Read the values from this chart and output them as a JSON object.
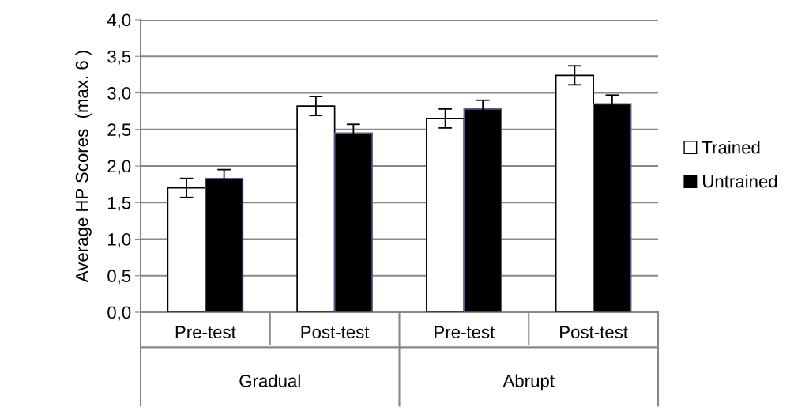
{
  "chart_data": {
    "type": "bar",
    "ylabel": "Average HP Scores  (max. 6 )",
    "categories": [
      "Pre-test",
      "Post-test",
      "Pre-test",
      "Post-test"
    ],
    "annotations": [
      "Gradual",
      "Abrupt"
    ],
    "series": [
      {
        "name": "Trained",
        "color": "#ffffff",
        "values": [
          1.7,
          2.82,
          2.65,
          3.24
        ],
        "errors": [
          0.13,
          0.13,
          0.13,
          0.13
        ]
      },
      {
        "name": "Untrained",
        "color": "#000000",
        "values": [
          1.83,
          2.45,
          2.78,
          2.85
        ],
        "errors": [
          0.12,
          0.12,
          0.12,
          0.12
        ]
      }
    ],
    "ylim": [
      0,
      4
    ],
    "yticks": [
      {
        "value": 0,
        "label": "0,0"
      },
      {
        "value": 0.5,
        "label": "0,5"
      },
      {
        "value": 1,
        "label": "1,0"
      },
      {
        "value": 1.5,
        "label": "1,5"
      },
      {
        "value": 2,
        "label": "2,0"
      },
      {
        "value": 2.5,
        "label": "2,5"
      },
      {
        "value": 3,
        "label": "3,0"
      },
      {
        "value": 3.5,
        "label": "3,5"
      },
      {
        "value": 4,
        "label": "4,0"
      }
    ],
    "grid": "y",
    "legend": "right"
  }
}
